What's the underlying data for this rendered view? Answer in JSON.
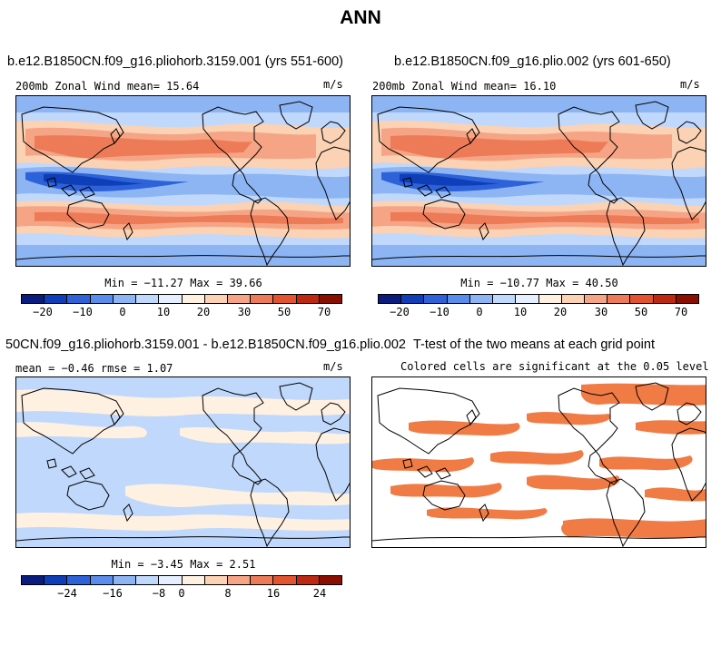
{
  "title": "ANN",
  "colors": {
    "palette": [
      "#0a1c7d",
      "#0e3fb9",
      "#2e62d9",
      "#5a8cec",
      "#8db5f4",
      "#c0d8fb",
      "#e5efff",
      "#fff1e2",
      "#fbd2b4",
      "#f5a585",
      "#ee7b57",
      "#e2532e",
      "#bd2811",
      "#8a0f00"
    ],
    "sig_fill": "#f07b45",
    "land_line": "#000000"
  },
  "panel1": {
    "title": "b.e12.B1850CN.f09_g16.pliohorb.3159.001 (yrs 551-600)",
    "subtitle": "200mb Zonal Wind  mean=  15.64",
    "units": "m/s",
    "minmax": "Min = −11.27 Max =  39.66",
    "ticks": [
      "−20",
      "−10",
      "0",
      "10",
      "20",
      "30",
      "50",
      "70"
    ]
  },
  "panel2": {
    "title": "b.e12.B1850CN.f09_g16.plio.002 (yrs 601-650)",
    "subtitle": "200mb Zonal Wind  mean=  16.10",
    "units": "m/s",
    "minmax": "Min = −10.77 Max =  40.50",
    "ticks": [
      "−20",
      "−10",
      "0",
      "10",
      "20",
      "30",
      "50",
      "70"
    ]
  },
  "panel3": {
    "title": "50CN.f09_g16.pliohorb.3159.001 - b.e12.B1850CN.f09_g16.plio.002",
    "subtitle": "mean =  −0.46   rmse =   1.07",
    "units": "m/s",
    "minmax": "Min =  −3.45 Max =   2.51",
    "ticks": [
      "−24",
      "−16",
      "−8",
      "0",
      "8",
      "16",
      "24"
    ]
  },
  "panel4": {
    "title": "T-test of the two means at each grid point",
    "subtitle": "Colored cells are significant at the 0.05 level"
  }
}
